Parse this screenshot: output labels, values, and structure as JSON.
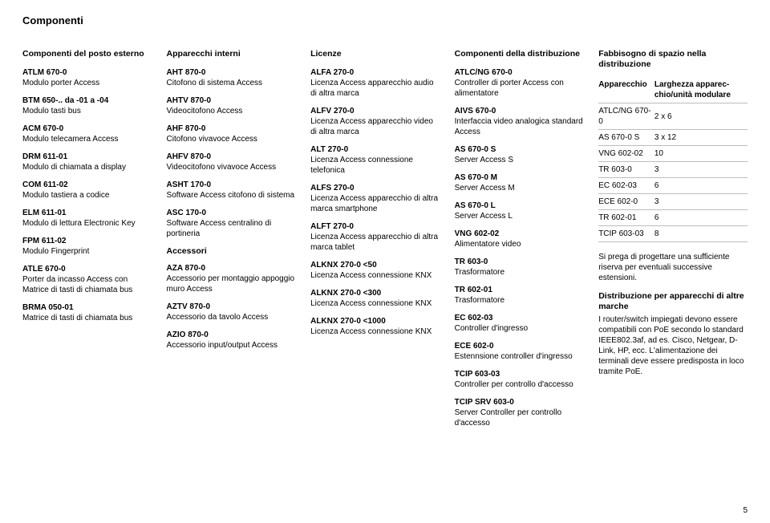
{
  "page_title": "Componenti",
  "page_number": "5",
  "columns": [
    {
      "heading": "Componenti del posto esterno",
      "entries": [
        {
          "code": "ATLM 670-0",
          "desc": "Modulo porter Access"
        },
        {
          "code": "BTM 650-.. da -01 a -04",
          "desc": "Modulo tasti bus"
        },
        {
          "code": "ACM 670-0",
          "desc": "Modulo telecamera Access"
        },
        {
          "code": "DRM 611-01",
          "desc": "Modulo di chiamata a display"
        },
        {
          "code": "COM 611-02",
          "desc": "Modulo tastiera a codice"
        },
        {
          "code": "ELM 611-01",
          "desc": "Modulo di lettura Electronic Key"
        },
        {
          "code": "FPM 611-02",
          "desc": "Modulo Fingerprint"
        },
        {
          "code": "ATLE 670-0",
          "desc": "Porter da incasso Access con Matrice di tasti di chiamata bus"
        },
        {
          "code": "BRMA 050-01",
          "desc": "Matrice di tasti di chiamata bus"
        }
      ]
    },
    {
      "heading": "Apparecchi interni",
      "entries": [
        {
          "code": "AHT 870-0",
          "desc": "Citofono di sistema Access"
        },
        {
          "code": "AHTV 870-0",
          "desc": "Videocitofono Access"
        },
        {
          "code": "AHF 870-0",
          "desc": "Citofono vivavoce Access"
        },
        {
          "code": "AHFV 870-0",
          "desc": "Videocitofono vivavoce Access"
        },
        {
          "code": "ASHT 170-0",
          "desc": "Software Access citofono di sistema"
        },
        {
          "code": "ASC 170-0",
          "desc": "Software Access centralino di portineria"
        }
      ],
      "sub_heading": "Accessori",
      "sub_entries": [
        {
          "code": "AZA 870-0",
          "desc": "Accessorio per montaggio appoggio muro Access"
        },
        {
          "code": "AZTV 870-0",
          "desc": "Accessorio da tavolo Access"
        },
        {
          "code": "AZIO 870-0",
          "desc": "Accessorio input/output Access"
        }
      ]
    },
    {
      "heading": "Licenze",
      "entries": [
        {
          "code": "ALFA 270-0",
          "desc": "Licenza Access apparecchio audio di altra marca"
        },
        {
          "code": "ALFV 270-0",
          "desc": "Licenza Access apparecchio video di altra marca"
        },
        {
          "code": "ALT 270-0",
          "desc": "Licenza Access connessione telefonica"
        },
        {
          "code": "ALFS 270-0",
          "desc": "Licenza Access apparecchio di altra marca smartphone"
        },
        {
          "code": "ALFT 270-0",
          "desc": "Licenza Access apparecchio di altra marca tablet"
        },
        {
          "code": "ALKNX 270-0 <50",
          "desc": "Licenza Access connessione KNX"
        },
        {
          "code": "ALKNX 270-0 <300",
          "desc": "Licenza Access connessione KNX"
        },
        {
          "code": "ALKNX 270-0 <1000",
          "desc": "Licenza Access connessione KNX"
        }
      ]
    },
    {
      "heading": "Componenti della distribuzione",
      "entries": [
        {
          "code": "ATLC/NG 670-0",
          "desc": "Controller di porter Access con alimentatore"
        },
        {
          "code": "AIVS 670-0",
          "desc": "Interfaccia video analogica standard Access"
        },
        {
          "code": "AS 670-0 S",
          "desc": "Server Access S"
        },
        {
          "code": "AS 670-0 M",
          "desc": "Server Access M"
        },
        {
          "code": "AS 670-0 L",
          "desc": "Server Access L"
        },
        {
          "code": "VNG 602-02",
          "desc": "Alimentatore video"
        },
        {
          "code": "TR 603-0",
          "desc": "Trasformatore"
        },
        {
          "code": "TR 602-01",
          "desc": "Trasformatore"
        },
        {
          "code": "EC 602-03",
          "desc": "Controller d'ingresso"
        },
        {
          "code": "ECE 602-0",
          "desc": "Estennsione controller d'ingresso"
        },
        {
          "code": "TCIP 603-03",
          "desc": "Controller per controllo d'accesso"
        },
        {
          "code": "TCIP SRV 603-0",
          "desc": "Server Controller per controllo d'accesso"
        }
      ]
    }
  ],
  "last_col": {
    "heading": "Fabbisogno di spazio nella distribuzione",
    "table": {
      "headers": [
        "Apparecchio",
        "Larghezza apparec­chio/unità modulare"
      ],
      "rows": [
        [
          "ATLC/NG 670-0",
          "2 x 6"
        ],
        [
          "AS 670-0 S",
          "3 x 12"
        ],
        [
          "VNG 602-02",
          "10"
        ],
        [
          "TR 603-0",
          "3"
        ],
        [
          "EC 602-03",
          "6"
        ],
        [
          "ECE 602-0",
          "3"
        ],
        [
          "TR 602-01",
          "6"
        ],
        [
          "TCIP 603-03",
          "8"
        ]
      ]
    },
    "note1": "Si prega di progettare una suffi­ciente riserva per eventuali suc­cessive estensioni.",
    "note2_title": "Distribuzione per apparecchi di altre marche",
    "note2_body": "I router/switch impiegati devono essere compatibili con PoE secondo lo standard IEEE802.3af, ad es. Cisco, Netgear, D-Link, HP, ecc. L'alimentazione dei terminali deve essere predisposta in loco tramite PoE."
  }
}
